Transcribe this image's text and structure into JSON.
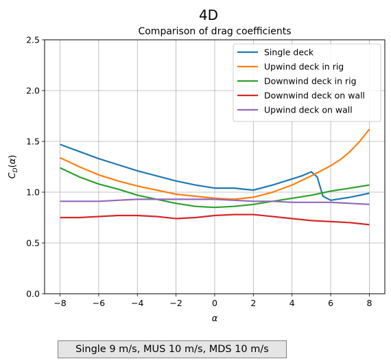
{
  "figure": {
    "suptitle": "4D",
    "caption": "Single 9 m/s, MUS 10 m/s, MDS 10 m/s"
  },
  "chart_data": {
    "type": "line",
    "title": "Comparison of drag coefficients",
    "xlabel": "α",
    "ylabel": "C_D(α)",
    "xlim": [
      -8.8,
      8.8
    ],
    "ylim": [
      0.0,
      2.5
    ],
    "xticks": [
      -8,
      -6,
      -4,
      -2,
      0,
      2,
      4,
      6,
      8
    ],
    "yticks": [
      0.0,
      0.5,
      1.0,
      1.5,
      2.0,
      2.5
    ],
    "grid": true,
    "legend_position": "upper right",
    "series": [
      {
        "name": "Single deck",
        "color": "#1f77b4",
        "x": [
          -8,
          -7,
          -6,
          -5,
          -4,
          -3,
          -2,
          -1,
          0,
          1,
          1.5,
          2,
          3,
          4,
          4.5,
          5,
          5.3,
          5.6,
          6,
          7,
          8
        ],
        "y": [
          1.47,
          1.4,
          1.33,
          1.27,
          1.21,
          1.16,
          1.11,
          1.07,
          1.04,
          1.04,
          1.03,
          1.02,
          1.07,
          1.13,
          1.16,
          1.2,
          1.15,
          0.96,
          0.92,
          0.95,
          0.99
        ]
      },
      {
        "name": "Upwind deck in rig",
        "color": "#ff7f0e",
        "x": [
          -8,
          -7,
          -6,
          -5,
          -4,
          -3,
          -2,
          -1,
          0,
          1,
          2,
          3,
          4,
          5,
          6,
          6.5,
          7,
          7.5,
          8
        ],
        "y": [
          1.34,
          1.25,
          1.17,
          1.11,
          1.06,
          1.02,
          0.98,
          0.96,
          0.94,
          0.93,
          0.95,
          1.0,
          1.07,
          1.16,
          1.26,
          1.32,
          1.4,
          1.5,
          1.62
        ]
      },
      {
        "name": "Downwind deck in rig",
        "color": "#2ca02c",
        "x": [
          -8,
          -7,
          -6,
          -5,
          -4,
          -3,
          -2,
          -1,
          0,
          1,
          2,
          3,
          4,
          5,
          6,
          7,
          8
        ],
        "y": [
          1.24,
          1.15,
          1.08,
          1.03,
          0.97,
          0.93,
          0.89,
          0.86,
          0.85,
          0.86,
          0.88,
          0.91,
          0.94,
          0.97,
          1.01,
          1.04,
          1.07
        ]
      },
      {
        "name": "Downwind deck on wall",
        "color": "#d62728",
        "x": [
          -8,
          -7,
          -6,
          -5,
          -4,
          -3,
          -2,
          -1,
          0,
          1,
          2,
          3,
          4,
          5,
          6,
          7,
          8
        ],
        "y": [
          0.75,
          0.75,
          0.76,
          0.77,
          0.77,
          0.76,
          0.74,
          0.75,
          0.77,
          0.78,
          0.78,
          0.76,
          0.74,
          0.72,
          0.71,
          0.7,
          0.68
        ]
      },
      {
        "name": "Upwind deck on wall",
        "color": "#9467bd",
        "x": [
          -8,
          -7,
          -6,
          -5,
          -4,
          -3,
          -2,
          -1,
          0,
          1,
          2,
          3,
          4,
          5,
          6,
          7,
          8
        ],
        "y": [
          0.91,
          0.91,
          0.91,
          0.92,
          0.93,
          0.93,
          0.93,
          0.93,
          0.93,
          0.92,
          0.91,
          0.91,
          0.9,
          0.9,
          0.9,
          0.89,
          0.88
        ]
      }
    ]
  }
}
